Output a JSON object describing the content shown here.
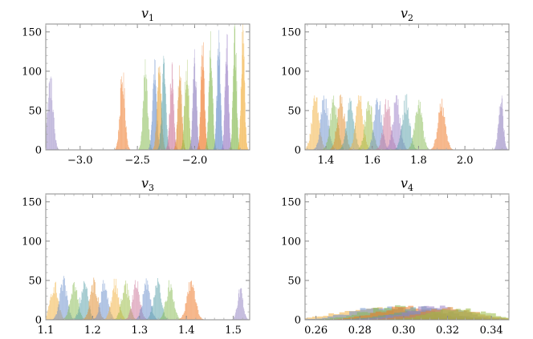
{
  "chart_data": [
    {
      "type": "histogram",
      "title": "v",
      "title_subscript": "1",
      "xlabel": "",
      "ylabel": "",
      "xlim": [
        -3.3,
        -1.52
      ],
      "ylim": [
        0,
        160
      ],
      "xticks": [
        -3.0,
        -2.5,
        -2.0
      ],
      "xtick_labels": [
        "−3.0",
        "−2.5",
        "−2.0"
      ],
      "yticks": [
        0,
        50,
        100,
        150
      ],
      "ytick_labels": [
        "0",
        "50",
        "100",
        "150"
      ],
      "grid": false,
      "series": [
        {
          "center": -3.26,
          "width": 0.025,
          "peak": 88,
          "color": "#8f7fbf"
        },
        {
          "center": -2.63,
          "width": 0.022,
          "peak": 93,
          "color": "#ee7722"
        },
        {
          "center": -2.43,
          "width": 0.02,
          "peak": 99,
          "color": "#88bb55"
        },
        {
          "center": -2.35,
          "width": 0.018,
          "peak": 103,
          "color": "#6c8fcc"
        },
        {
          "center": -2.31,
          "width": 0.018,
          "peak": 108,
          "color": "#e7a33a"
        },
        {
          "center": -2.27,
          "width": 0.018,
          "peak": 106,
          "color": "#5aa0aa"
        },
        {
          "center": -2.2,
          "width": 0.017,
          "peak": 100,
          "color": "#cc7799"
        },
        {
          "center": -2.13,
          "width": 0.017,
          "peak": 98,
          "color": "#e08a2a"
        },
        {
          "center": -2.07,
          "width": 0.017,
          "peak": 115,
          "color": "#99bb44"
        },
        {
          "center": -2.0,
          "width": 0.016,
          "peak": 122,
          "color": "#8f7fbf"
        },
        {
          "center": -1.93,
          "width": 0.016,
          "peak": 130,
          "color": "#ee7722"
        },
        {
          "center": -1.86,
          "width": 0.016,
          "peak": 135,
          "color": "#88bb55"
        },
        {
          "center": -1.79,
          "width": 0.015,
          "peak": 140,
          "color": "#6c8fcc"
        },
        {
          "center": -1.72,
          "width": 0.015,
          "peak": 142,
          "color": "#9a7fc6"
        },
        {
          "center": -1.65,
          "width": 0.015,
          "peak": 145,
          "color": "#88bb55"
        },
        {
          "center": -1.58,
          "width": 0.015,
          "peak": 146,
          "color": "#f2b040"
        }
      ]
    },
    {
      "type": "histogram",
      "title": "v",
      "title_subscript": "2",
      "xlabel": "",
      "ylabel": "",
      "xlim": [
        1.31,
        2.19
      ],
      "ylim": [
        0,
        160
      ],
      "xticks": [
        1.4,
        1.6,
        1.8,
        2.0
      ],
      "xtick_labels": [
        "1.4",
        "1.6",
        "1.8",
        "2.0"
      ],
      "yticks": [
        0,
        50,
        100,
        150
      ],
      "ytick_labels": [
        "0",
        "50",
        "100",
        "150"
      ],
      "grid": false,
      "series": [
        {
          "center": 1.355,
          "width": 0.016,
          "peak": 64,
          "color": "#f2b040"
        },
        {
          "center": 1.395,
          "width": 0.016,
          "peak": 66,
          "color": "#6c8fcc"
        },
        {
          "center": 1.435,
          "width": 0.016,
          "peak": 64,
          "color": "#88bb55"
        },
        {
          "center": 1.465,
          "width": 0.016,
          "peak": 65,
          "color": "#e08a2a"
        },
        {
          "center": 1.505,
          "width": 0.016,
          "peak": 63,
          "color": "#5aa0aa"
        },
        {
          "center": 1.545,
          "width": 0.016,
          "peak": 66,
          "color": "#f2b040"
        },
        {
          "center": 1.585,
          "width": 0.016,
          "peak": 64,
          "color": "#99bb44"
        },
        {
          "center": 1.625,
          "width": 0.016,
          "peak": 65,
          "color": "#6c8fcc"
        },
        {
          "center": 1.665,
          "width": 0.016,
          "peak": 63,
          "color": "#cc7799"
        },
        {
          "center": 1.705,
          "width": 0.016,
          "peak": 64,
          "color": "#9a7fc6"
        },
        {
          "center": 1.745,
          "width": 0.016,
          "peak": 63,
          "color": "#5aa0aa"
        },
        {
          "center": 1.8,
          "width": 0.016,
          "peak": 60,
          "color": "#88bb55"
        },
        {
          "center": 1.9,
          "width": 0.016,
          "peak": 60,
          "color": "#ee7722"
        },
        {
          "center": 2.155,
          "width": 0.01,
          "peak": 68,
          "color": "#8f7fbf"
        }
      ]
    },
    {
      "type": "histogram",
      "title": "v",
      "title_subscript": "3",
      "xlabel": "",
      "ylabel": "",
      "xlim": [
        1.1,
        1.535
      ],
      "ylim": [
        0,
        160
      ],
      "xticks": [
        1.1,
        1.2,
        1.3,
        1.4,
        1.5
      ],
      "xtick_labels": [
        "1.1",
        "1.2",
        "1.3",
        "1.4",
        "1.5"
      ],
      "yticks": [
        0,
        50,
        100,
        150
      ],
      "ytick_labels": [
        "0",
        "50",
        "100",
        "150"
      ],
      "grid": false,
      "series": [
        {
          "center": 1.118,
          "width": 0.008,
          "peak": 46,
          "color": "#f2b040"
        },
        {
          "center": 1.138,
          "width": 0.008,
          "peak": 48,
          "color": "#6c8fcc"
        },
        {
          "center": 1.16,
          "width": 0.008,
          "peak": 47,
          "color": "#88bb55"
        },
        {
          "center": 1.182,
          "width": 0.008,
          "peak": 47,
          "color": "#5aa0aa"
        },
        {
          "center": 1.203,
          "width": 0.008,
          "peak": 48,
          "color": "#e08a2a"
        },
        {
          "center": 1.225,
          "width": 0.008,
          "peak": 47,
          "color": "#6c8fcc"
        },
        {
          "center": 1.248,
          "width": 0.008,
          "peak": 47,
          "color": "#f2b040"
        },
        {
          "center": 1.27,
          "width": 0.008,
          "peak": 47,
          "color": "#99bb44"
        },
        {
          "center": 1.293,
          "width": 0.008,
          "peak": 46,
          "color": "#cc7799"
        },
        {
          "center": 1.315,
          "width": 0.008,
          "peak": 47,
          "color": "#6c8fcc"
        },
        {
          "center": 1.338,
          "width": 0.008,
          "peak": 48,
          "color": "#5aa0aa"
        },
        {
          "center": 1.365,
          "width": 0.008,
          "peak": 46,
          "color": "#88bb55"
        },
        {
          "center": 1.41,
          "width": 0.009,
          "peak": 46,
          "color": "#ee7722"
        },
        {
          "center": 1.515,
          "width": 0.006,
          "peak": 40,
          "color": "#8f7fbf"
        }
      ]
    },
    {
      "type": "histogram",
      "title": "v",
      "title_subscript": "4",
      "xlabel": "",
      "ylabel": "",
      "xlim": [
        0.255,
        0.348
      ],
      "ylim": [
        0,
        160
      ],
      "xticks": [
        0.26,
        0.28,
        0.3,
        0.32,
        0.34
      ],
      "xtick_labels": [
        "0.26",
        "0.28",
        "0.30",
        "0.32",
        "0.34"
      ],
      "yticks": [
        0,
        50,
        100,
        150
      ],
      "ytick_labels": [
        "0",
        "50",
        "100",
        "150"
      ],
      "grid": false,
      "series": [
        {
          "center": 0.283,
          "width": 0.014,
          "peak": 15,
          "color": "#f2b040"
        },
        {
          "center": 0.29,
          "width": 0.014,
          "peak": 16,
          "color": "#6c8fcc"
        },
        {
          "center": 0.296,
          "width": 0.014,
          "peak": 16,
          "color": "#88bb55"
        },
        {
          "center": 0.302,
          "width": 0.014,
          "peak": 16,
          "color": "#ee7722"
        },
        {
          "center": 0.308,
          "width": 0.014,
          "peak": 15,
          "color": "#5aa0aa"
        },
        {
          "center": 0.314,
          "width": 0.014,
          "peak": 16,
          "color": "#9a7fc6"
        },
        {
          "center": 0.32,
          "width": 0.014,
          "peak": 15,
          "color": "#e08a2a"
        },
        {
          "center": 0.326,
          "width": 0.013,
          "peak": 14,
          "color": "#99bb44"
        }
      ]
    }
  ]
}
